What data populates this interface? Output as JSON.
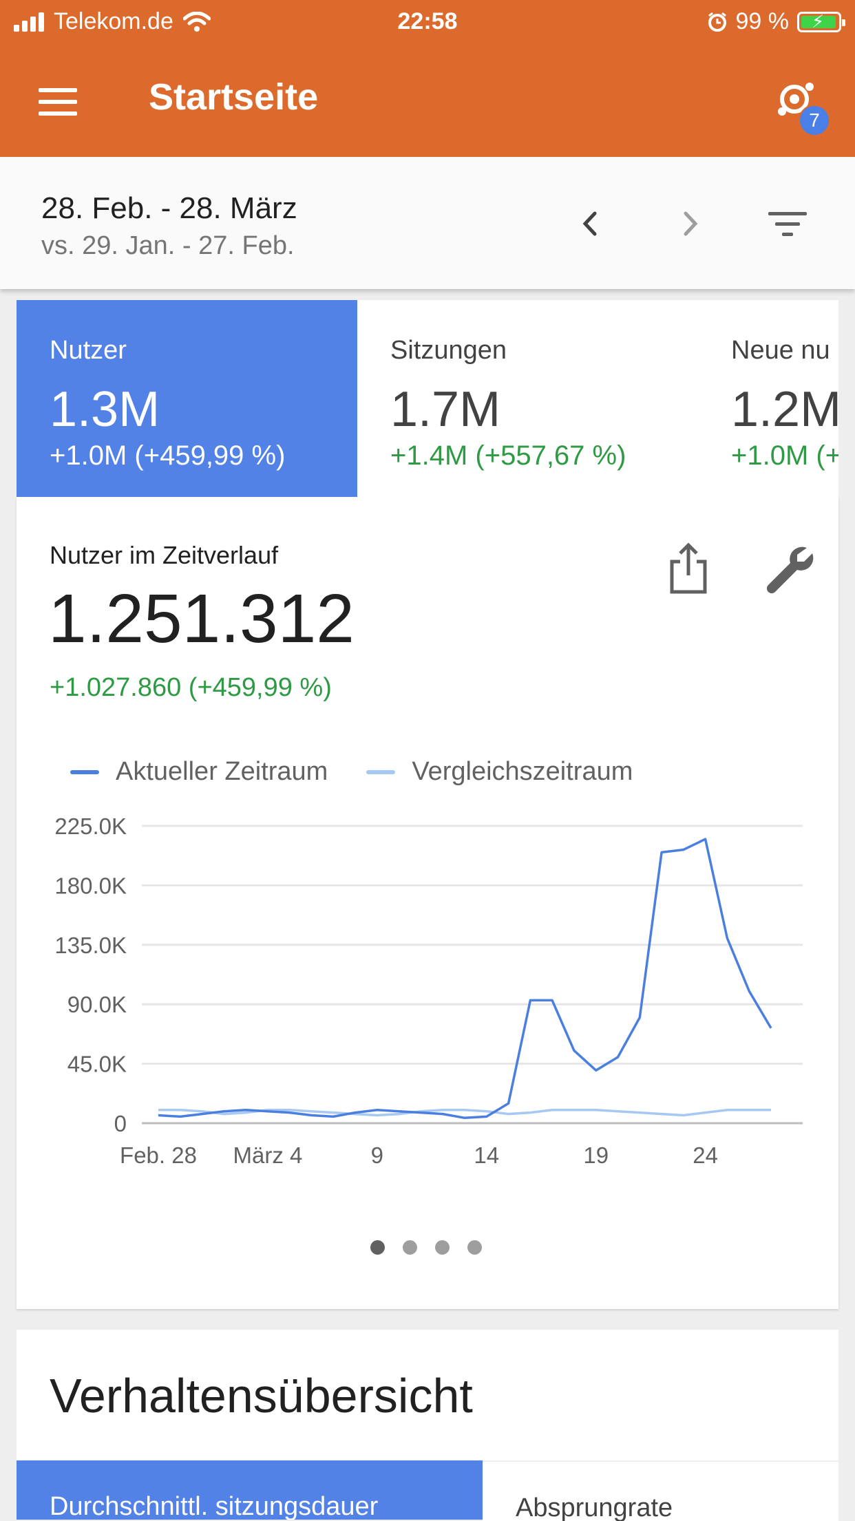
{
  "status_bar": {
    "carrier": "Telekom.de",
    "time": "22:58",
    "battery": "99 %"
  },
  "app_bar": {
    "title": "Startseite",
    "insights_badge": "7"
  },
  "date_range": {
    "current": "28. Feb. - 28. März",
    "comparison": "vs. 29. Jan. - 27. Feb."
  },
  "metrics": [
    {
      "label": "Nutzer",
      "value": "1.3M",
      "change": "+1.0M (+459,99 %)",
      "active": true
    },
    {
      "label": "Sitzungen",
      "value": "1.7M",
      "change": "+1.4M (+557,67 %)",
      "active": false
    },
    {
      "label": "Neue nu",
      "value": "1.2M",
      "change": "+1.0M (+",
      "active": false
    }
  ],
  "chart_card": {
    "title": "Nutzer im Zeitverlauf",
    "total": "1.251.312",
    "delta": "+1.027.860 (+459,99 %)"
  },
  "colors": {
    "app_bar": "#dc6a2c",
    "active_tile": "#5282e6",
    "positive": "#2e9a43",
    "series_current": "#4a7fe0",
    "series_comparison": "#a6c8f2"
  },
  "chart_data": {
    "type": "line",
    "x_tick_labels": [
      "Feb. 28",
      "März 4",
      "9",
      "14",
      "19",
      "24"
    ],
    "x_tick_day_index": [
      0,
      5,
      10,
      15,
      20,
      25
    ],
    "y_tick_labels": [
      "225.0K",
      "180.0K",
      "135.0K",
      "90.0K",
      "45.0K",
      "0"
    ],
    "y_tick_values": [
      225000,
      180000,
      135000,
      90000,
      45000,
      0
    ],
    "ylim": [
      0,
      225000
    ],
    "grid": true,
    "legend_position": "top",
    "series": [
      {
        "name": "Aktueller Zeitraum",
        "values": [
          6000,
          5000,
          7000,
          9000,
          10000,
          9000,
          8000,
          6000,
          5000,
          8000,
          10000,
          9000,
          8000,
          7000,
          4000,
          5000,
          15000,
          93000,
          93000,
          55000,
          40000,
          50000,
          80000,
          205000,
          207000,
          215000,
          140000,
          100000,
          72000
        ]
      },
      {
        "name": "Vergleichszeitraum",
        "values": [
          10000,
          10000,
          9000,
          7000,
          8000,
          10000,
          10000,
          9000,
          8000,
          7000,
          6000,
          7000,
          9000,
          10000,
          10000,
          9000,
          7000,
          8000,
          10000,
          10000,
          10000,
          9000,
          8000,
          7000,
          6000,
          8000,
          10000,
          10000,
          10000
        ]
      }
    ]
  },
  "carousel": {
    "pages": 4,
    "active": 0
  },
  "behavior_card": {
    "title": "Verhaltensübersicht",
    "tab_active": "Durchschnittl. sitzungsdauer",
    "tab_inactive": "Absprungrate"
  }
}
